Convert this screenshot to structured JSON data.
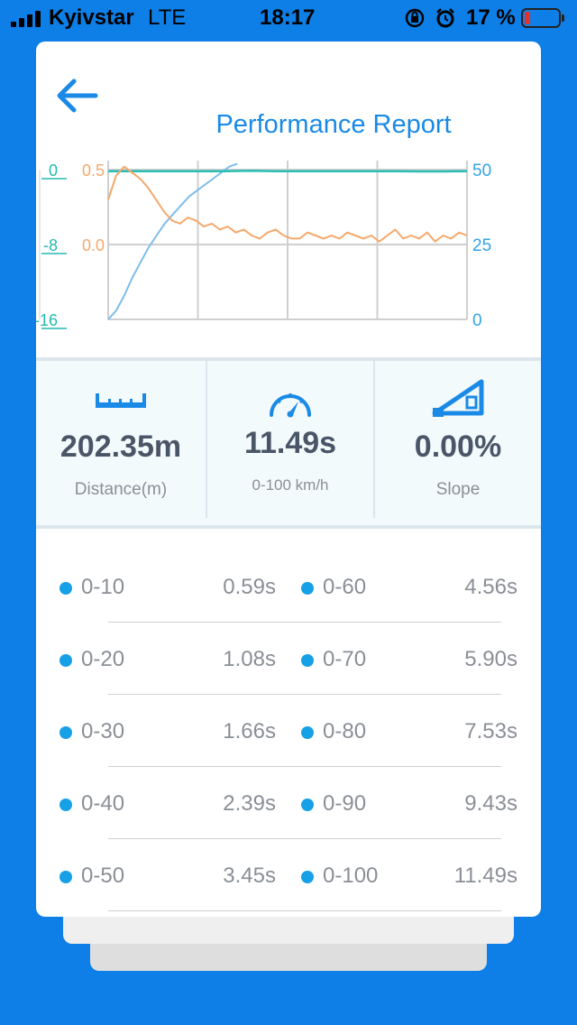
{
  "status_bar": {
    "carrier": "Kyivstar",
    "network": "LTE",
    "time": "18:17",
    "battery_percent": "17 %",
    "battery_level": 0.17
  },
  "header": {
    "title": "Performance Report"
  },
  "chart_data": {
    "type": "line",
    "left_axis_outer": {
      "ticks": [
        "0",
        "-8",
        "-16"
      ],
      "range": [
        -16,
        0
      ],
      "color": "#26b9b0"
    },
    "left_axis_inner": {
      "ticks": [
        "0.5",
        "0.0"
      ],
      "color": "#f5a86b"
    },
    "right_axis": {
      "ticks": [
        "50",
        "25",
        "0"
      ],
      "range": [
        0,
        50
      ],
      "color": "#33a3e8"
    },
    "grid": true,
    "series": [
      {
        "color": "#7fbdea",
        "axis": "right",
        "values": [
          0,
          3,
          8,
          14,
          19,
          24,
          28,
          32,
          35,
          38,
          41,
          43,
          45,
          47,
          49,
          51,
          52
        ]
      },
      {
        "color": "#2bbdb3",
        "axis": "right",
        "values": [
          49.5,
          49.5,
          49.5,
          49.5,
          49.5,
          49.5,
          49.6,
          49.5,
          49.5,
          49.5,
          49.5,
          49.5,
          49.5,
          49.4,
          49.4,
          49.5
        ]
      },
      {
        "color": "#f5a86b",
        "axis": "right",
        "values": [
          40,
          48,
          51,
          49,
          47,
          44,
          40,
          36,
          33,
          32,
          34,
          33,
          31,
          32,
          30,
          31,
          29,
          30,
          28,
          27,
          29,
          30,
          28,
          27,
          27,
          29,
          28,
          27,
          28,
          27,
          29,
          28,
          27,
          28,
          26,
          28,
          30,
          27,
          28,
          27,
          29,
          26,
          28,
          27,
          29,
          28
        ]
      }
    ]
  },
  "stats": [
    {
      "icon": "ruler-icon",
      "value": "202.35m",
      "label": "Distance(m)"
    },
    {
      "icon": "speedometer-icon",
      "value": "11.49s",
      "label": "0-100 km/h"
    },
    {
      "icon": "slope-icon",
      "value": "0.00%",
      "label": "Slope"
    }
  ],
  "intervals": [
    {
      "left_label": "0-10",
      "left_value": "0.59s",
      "right_label": "0-60",
      "right_value": "4.56s"
    },
    {
      "left_label": "0-20",
      "left_value": "1.08s",
      "right_label": "0-70",
      "right_value": "5.90s"
    },
    {
      "left_label": "0-30",
      "left_value": "1.66s",
      "right_label": "0-80",
      "right_value": "7.53s"
    },
    {
      "left_label": "0-40",
      "left_value": "2.39s",
      "right_label": "0-90",
      "right_value": "9.43s"
    },
    {
      "left_label": "0-50",
      "left_value": "3.45s",
      "right_label": "0-100",
      "right_value": "11.49s"
    }
  ],
  "colors": {
    "background": "#0d7fe6",
    "accent": "#1a8ae6",
    "dot": "#16a0e6",
    "icon": "#1a8ae6"
  }
}
